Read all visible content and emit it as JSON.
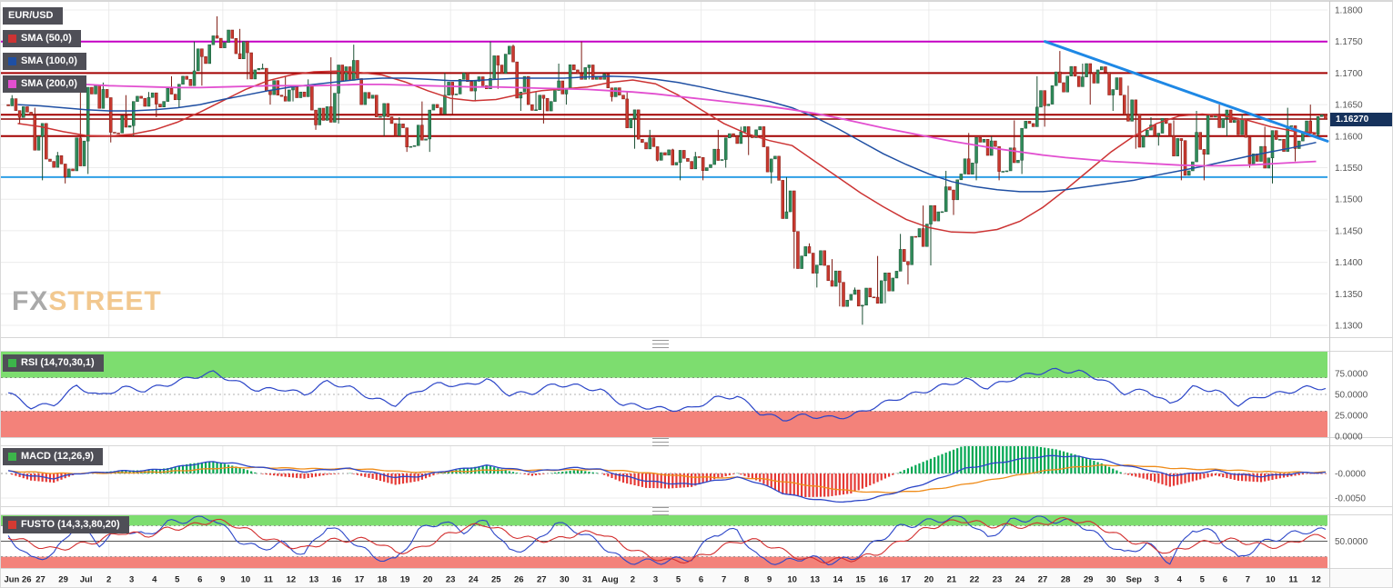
{
  "legend": {
    "symbol_label": "EUR/USD",
    "sma50_label": "SMA (50,0)",
    "sma100_label": "SMA (100,0)",
    "sma200_label": "SMA (200,0)"
  },
  "watermark": {
    "part1": "FX",
    "part2": "STREET"
  },
  "price_axis": {
    "labels": [
      "1.1800",
      "1.1750",
      "1.1700",
      "1.1650",
      "1.1600",
      "1.1550",
      "1.1500",
      "1.1450",
      "1.1400",
      "1.1350",
      "1.1300"
    ],
    "current": "1.16270",
    "current_value": 1.1627
  },
  "indicators": {
    "rsi": {
      "label": "RSI (14,70,30,1)",
      "upper": 70,
      "lower": 30,
      "axis": [
        {
          "t": "75.0000",
          "v": 75
        },
        {
          "t": "50.0000",
          "v": 50
        },
        {
          "t": "25.0000",
          "v": 25
        },
        {
          "t": "0.0000",
          "v": 0
        }
      ]
    },
    "macd": {
      "label": "MACD (12,26,9)",
      "axis": [
        {
          "t": "-0.0000",
          "v": 0
        },
        {
          "t": "-0.0050",
          "v": -0.005
        }
      ]
    },
    "stoch": {
      "label": "FUSTO (14,3,3,80,20)",
      "upper": 80,
      "lower": 20,
      "axis": [
        {
          "t": "50.0000",
          "v": 50
        }
      ]
    }
  },
  "colors": {
    "candle_up": "#2f8c5a",
    "candle_up_border": "#1b4f33",
    "candle_down": "#c8392f",
    "candle_down_border": "#7e1a12",
    "sma50": "#cc3333",
    "sma100": "#1f4fa3",
    "sma200": "#e24fd0",
    "trendline": "#1e88e5",
    "rsi_line": "#2c46c8",
    "macd_line": "#2c46c8",
    "macd_signal": "#ef8c1a",
    "hist_up": "#00a651",
    "hist_down": "#e53935",
    "stoch_k": "#2c46c8",
    "stoch_d": "#d32f2f",
    "zone_green": "#7ddd6f",
    "zone_red": "#f3827a",
    "price_badge": "#16325c",
    "badge_bg": "#4f4f57",
    "rsi_chip": "#3cb54a",
    "macd_chip": "#3cb54a",
    "stoch_chip": "#d63a32"
  },
  "chart_data": {
    "type": "candlestick",
    "title": "EUR/USD",
    "pair": "EUR/USD",
    "ylim": [
      1.13,
      1.18
    ],
    "current_price": 1.1627,
    "timeframe_labels": [
      "Jun 26",
      "27",
      "29",
      "Jul",
      "2",
      "3",
      "4",
      "5",
      "6",
      "9",
      "10",
      "11",
      "12",
      "13",
      "16",
      "17",
      "18",
      "19",
      "20",
      "23",
      "24",
      "25",
      "26",
      "27",
      "30",
      "31",
      "Aug",
      "2",
      "3",
      "5",
      "6",
      "7",
      "8",
      "9",
      "10",
      "13",
      "14",
      "15",
      "16",
      "17",
      "20",
      "21",
      "22",
      "23",
      "24",
      "27",
      "28",
      "29",
      "30",
      "Sep",
      "3",
      "4",
      "5",
      "6",
      "7",
      "10",
      "11",
      "12"
    ],
    "monday_indices": [
      4,
      9,
      14,
      19,
      24,
      30,
      35,
      40,
      45,
      50,
      55
    ],
    "candles_ohlc": [
      [
        1.165,
        1.1665,
        1.162,
        1.1638
      ],
      [
        1.1638,
        1.1645,
        1.153,
        1.156
      ],
      [
        1.156,
        1.1575,
        1.1525,
        1.1545
      ],
      [
        1.1545,
        1.169,
        1.154,
        1.168
      ],
      [
        1.168,
        1.1685,
        1.159,
        1.1605
      ],
      [
        1.1605,
        1.1665,
        1.16,
        1.166
      ],
      [
        1.166,
        1.167,
        1.163,
        1.1655
      ],
      [
        1.1655,
        1.1695,
        1.1645,
        1.169
      ],
      [
        1.169,
        1.175,
        1.168,
        1.1745
      ],
      [
        1.1745,
        1.179,
        1.174,
        1.1755
      ],
      [
        1.1755,
        1.177,
        1.169,
        1.1705
      ],
      [
        1.1705,
        1.1715,
        1.165,
        1.1665
      ],
      [
        1.1665,
        1.1695,
        1.1655,
        1.167
      ],
      [
        1.167,
        1.169,
        1.161,
        1.1625
      ],
      [
        1.1625,
        1.1725,
        1.162,
        1.171
      ],
      [
        1.171,
        1.1745,
        1.165,
        1.166
      ],
      [
        1.166,
        1.1665,
        1.16,
        1.162
      ],
      [
        1.162,
        1.163,
        1.1575,
        1.1585
      ],
      [
        1.1585,
        1.1655,
        1.1575,
        1.1645
      ],
      [
        1.1645,
        1.17,
        1.1635,
        1.169
      ],
      [
        1.169,
        1.17,
        1.1655,
        1.168
      ],
      [
        1.168,
        1.175,
        1.1675,
        1.173
      ],
      [
        1.173,
        1.1745,
        1.164,
        1.165
      ],
      [
        1.165,
        1.167,
        1.162,
        1.1655
      ],
      [
        1.1655,
        1.1715,
        1.165,
        1.1705
      ],
      [
        1.1705,
        1.175,
        1.169,
        1.1695
      ],
      [
        1.1695,
        1.17,
        1.1655,
        1.1665
      ],
      [
        1.1665,
        1.167,
        1.158,
        1.159
      ],
      [
        1.159,
        1.161,
        1.156,
        1.157
      ],
      [
        1.157,
        1.158,
        1.153,
        1.156
      ],
      [
        1.156,
        1.1575,
        1.153,
        1.1555
      ],
      [
        1.1555,
        1.161,
        1.155,
        1.16
      ],
      [
        1.16,
        1.1615,
        1.157,
        1.161
      ],
      [
        1.161,
        1.1615,
        1.1525,
        1.153
      ],
      [
        1.153,
        1.1535,
        1.139,
        1.141
      ],
      [
        1.141,
        1.143,
        1.136,
        1.1395
      ],
      [
        1.1395,
        1.1405,
        1.133,
        1.134
      ],
      [
        1.134,
        1.136,
        1.1301,
        1.1345
      ],
      [
        1.1345,
        1.141,
        1.1335,
        1.1375
      ],
      [
        1.1375,
        1.1445,
        1.1365,
        1.144
      ],
      [
        1.144,
        1.149,
        1.1395,
        1.148
      ],
      [
        1.148,
        1.1545,
        1.1475,
        1.154
      ],
      [
        1.154,
        1.1605,
        1.153,
        1.1595
      ],
      [
        1.1595,
        1.16,
        1.153,
        1.1545
      ],
      [
        1.1545,
        1.1625,
        1.154,
        1.162
      ],
      [
        1.162,
        1.1695,
        1.1615,
        1.168
      ],
      [
        1.168,
        1.1735,
        1.167,
        1.1695
      ],
      [
        1.1695,
        1.1715,
        1.165,
        1.1705
      ],
      [
        1.1705,
        1.171,
        1.164,
        1.1665
      ],
      [
        1.1665,
        1.168,
        1.158,
        1.16
      ],
      [
        1.16,
        1.163,
        1.1585,
        1.162
      ],
      [
        1.162,
        1.1625,
        1.153,
        1.1545
      ],
      [
        1.1545,
        1.164,
        1.153,
        1.163
      ],
      [
        1.163,
        1.165,
        1.16,
        1.1625
      ],
      [
        1.1625,
        1.1635,
        1.155,
        1.156
      ],
      [
        1.156,
        1.1615,
        1.1525,
        1.1595
      ],
      [
        1.1595,
        1.1645,
        1.156,
        1.1605
      ],
      [
        1.1605,
        1.165,
        1.1595,
        1.1627
      ]
    ],
    "sma50": [
      1.162,
      1.1615,
      1.1607,
      1.1601,
      1.16,
      1.1603,
      1.161,
      1.1622,
      1.1638,
      1.1656,
      1.1674,
      1.1688,
      1.1697,
      1.1702,
      1.1703,
      1.1701,
      1.1697,
      1.1686,
      1.1672,
      1.166,
      1.1656,
      1.1658,
      1.1666,
      1.1672,
      1.1675,
      1.1678,
      1.1685,
      1.1689,
      1.1683,
      1.1665,
      1.1642,
      1.162,
      1.1604,
      1.1593,
      1.1585,
      1.156,
      1.1535,
      1.151,
      1.1488,
      1.1468,
      1.1455,
      1.1448,
      1.1447,
      1.1452,
      1.1465,
      1.1487,
      1.1515,
      1.1545,
      1.1575,
      1.16,
      1.162,
      1.1632,
      1.1635,
      1.1632,
      1.1625,
      1.1615,
      1.1608,
      1.1605
    ],
    "sma100": [
      1.165,
      1.1648,
      1.1645,
      1.1642,
      1.164,
      1.164,
      1.1642,
      1.1645,
      1.165,
      1.1658,
      1.1665,
      1.1672,
      1.1678,
      1.1682,
      1.1686,
      1.169,
      1.1692,
      1.1692,
      1.169,
      1.1688,
      1.1688,
      1.169,
      1.1692,
      1.1692,
      1.1692,
      1.1694,
      1.1695,
      1.1694,
      1.169,
      1.1685,
      1.1678,
      1.167,
      1.1663,
      1.1655,
      1.1645,
      1.163,
      1.1612,
      1.1592,
      1.1572,
      1.1555,
      1.154,
      1.1528,
      1.152,
      1.1515,
      1.1512,
      1.1512,
      1.1515,
      1.152,
      1.1525,
      1.153,
      1.1538,
      1.1545,
      1.1552,
      1.156,
      1.1568,
      1.1575,
      1.1582,
      1.159
    ],
    "sma200": [
      1.1688,
      1.1686,
      1.1684,
      1.1682,
      1.168,
      1.1679,
      1.1678,
      1.1677,
      1.1677,
      1.1678,
      1.1679,
      1.168,
      1.168,
      1.168,
      1.1681,
      1.1682,
      1.1682,
      1.1681,
      1.168,
      1.1679,
      1.1678,
      1.1678,
      1.1677,
      1.1676,
      1.1675,
      1.1674,
      1.1672,
      1.167,
      1.1667,
      1.1663,
      1.1659,
      1.1655,
      1.1651,
      1.1647,
      1.1642,
      1.1636,
      1.1629,
      1.1621,
      1.1613,
      1.1606,
      1.1599,
      1.1592,
      1.1586,
      1.158,
      1.1575,
      1.157,
      1.1566,
      1.1563,
      1.156,
      1.1558,
      1.1556,
      1.1554,
      1.1553,
      1.1553,
      1.1554,
      1.1556,
      1.1558,
      1.156
    ],
    "rsi": [
      52,
      35,
      38,
      60,
      48,
      58,
      55,
      62,
      70,
      76,
      65,
      55,
      57,
      50,
      65,
      58,
      45,
      38,
      55,
      63,
      60,
      68,
      50,
      52,
      62,
      60,
      55,
      38,
      35,
      32,
      33,
      45,
      48,
      28,
      20,
      25,
      22,
      24,
      35,
      45,
      52,
      60,
      68,
      58,
      68,
      75,
      79,
      77,
      68,
      52,
      55,
      38,
      58,
      55,
      38,
      48,
      52,
      58
    ],
    "macd": [
      0.0005,
      -0.0005,
      -0.001,
      0.0,
      0.0002,
      0.0005,
      0.0006,
      0.001,
      0.0018,
      0.0024,
      0.002,
      0.0012,
      0.0008,
      0.0004,
      0.0008,
      0.001,
      0.0002,
      -0.0008,
      -0.0006,
      0.0004,
      0.001,
      0.0016,
      0.001,
      0.0004,
      0.0008,
      0.0012,
      0.0008,
      -0.0005,
      -0.0015,
      -0.002,
      -0.0022,
      -0.0015,
      -0.0008,
      -0.002,
      -0.004,
      -0.005,
      -0.0056,
      -0.0058,
      -0.005,
      -0.0038,
      -0.0024,
      -0.0008,
      0.001,
      0.0018,
      0.0026,
      0.0033,
      0.0036,
      0.0034,
      0.0028,
      0.0016,
      0.0008,
      -0.0004,
      0.0,
      0.0006,
      -0.0002,
      -0.0006,
      -0.0002,
      0.0002
    ],
    "stoch": [
      60,
      15,
      25,
      85,
      45,
      75,
      60,
      85,
      92,
      95,
      55,
      35,
      45,
      25,
      80,
      55,
      20,
      12,
      70,
      88,
      70,
      90,
      30,
      40,
      85,
      70,
      45,
      12,
      10,
      12,
      18,
      65,
      70,
      15,
      8,
      20,
      10,
      15,
      45,
      75,
      85,
      92,
      95,
      55,
      88,
      95,
      90,
      85,
      55,
      25,
      45,
      10,
      75,
      65,
      15,
      45,
      60,
      70
    ],
    "horizontal_lines": [
      {
        "value": 1.175,
        "color": "#c400c4",
        "width": 2
      },
      {
        "value": 1.17,
        "color": "#a30000",
        "width": 2
      },
      {
        "value": 1.1634,
        "color": "#a30000",
        "width": 2
      },
      {
        "value": 1.1627,
        "color": "#8b0000",
        "width": 1.5
      },
      {
        "value": 1.16,
        "color": "#a30000",
        "width": 2
      },
      {
        "value": 1.1535,
        "color": "#2e9fe6",
        "width": 2
      }
    ],
    "trendline": {
      "from_index": 45.6,
      "from_value": 1.175,
      "to_index": 58.0,
      "to_value": 1.1592
    }
  }
}
